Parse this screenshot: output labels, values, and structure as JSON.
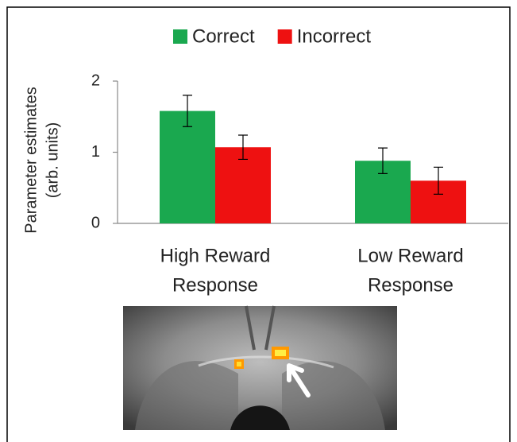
{
  "chart_data": {
    "type": "bar",
    "ylabel": [
      "Parameter estimates",
      "(arb. units)"
    ],
    "categories": [
      [
        "High Reward",
        "Response"
      ],
      [
        "Low Reward",
        "Response"
      ]
    ],
    "series": [
      {
        "name": "Correct",
        "color": "#1aa84f",
        "values": [
          1.58,
          0.88
        ],
        "errors": [
          0.22,
          0.18
        ]
      },
      {
        "name": "Incorrect",
        "color": "#ee1111",
        "values": [
          1.07,
          0.6
        ],
        "errors": [
          0.17,
          0.19
        ]
      }
    ],
    "ylim": [
      0,
      2
    ],
    "yticks": [
      0,
      1,
      2
    ],
    "legend": "top"
  }
}
